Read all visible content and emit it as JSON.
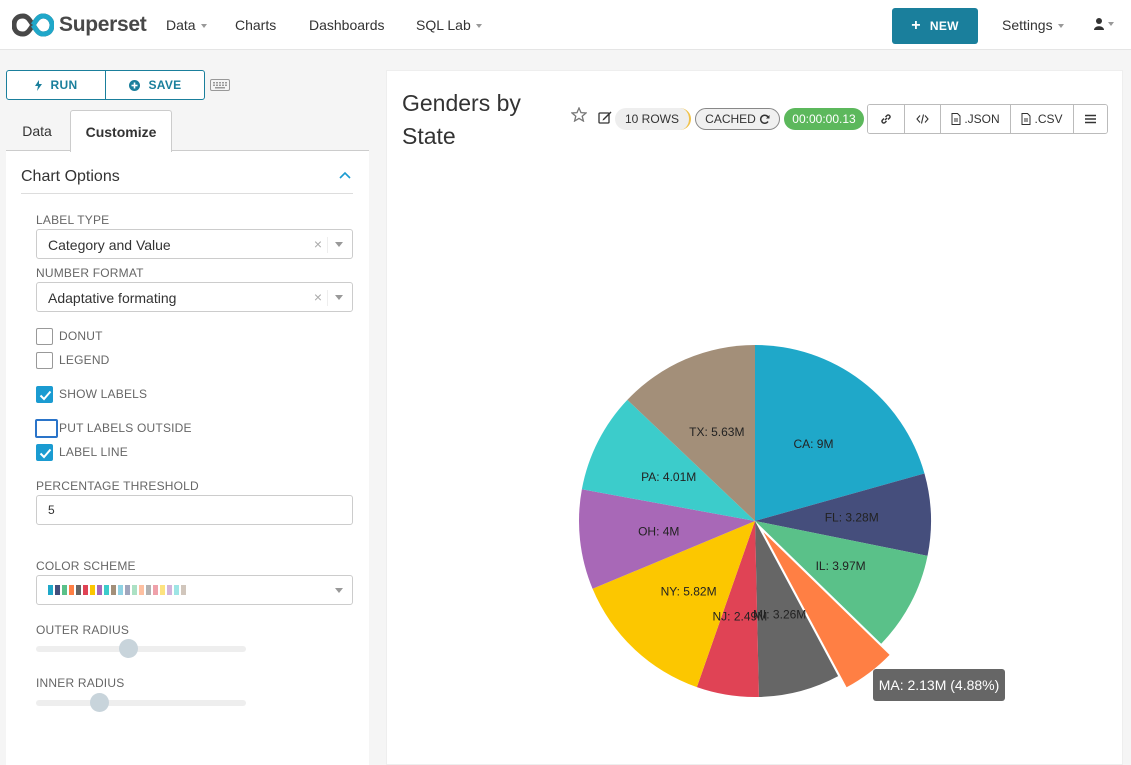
{
  "navbar": {
    "brand": "Superset",
    "items": [
      {
        "label": "Data",
        "dropdown": true
      },
      {
        "label": "Charts",
        "dropdown": false
      },
      {
        "label": "Dashboards",
        "dropdown": false
      },
      {
        "label": "SQL Lab",
        "dropdown": true
      }
    ],
    "new_label": "NEW",
    "settings_label": "Settings",
    "user_icon": "user-icon"
  },
  "toolbar": {
    "run_label": "RUN",
    "save_label": "SAVE"
  },
  "tabs": {
    "data": "Data",
    "customize": "Customize"
  },
  "options": {
    "section_title": "Chart Options",
    "label_type": {
      "label": "LABEL TYPE",
      "value": "Category and Value"
    },
    "number_format": {
      "label": "NUMBER FORMAT",
      "value": "Adaptative formating"
    },
    "checkboxes": [
      {
        "label": "DONUT",
        "checked": false
      },
      {
        "label": "LEGEND",
        "checked": false
      },
      {
        "label": "SHOW LABELS",
        "checked": true
      },
      {
        "label": "PUT LABELS OUTSIDE",
        "checked": false
      },
      {
        "label": "LABEL LINE",
        "checked": true
      }
    ],
    "percentage_threshold": {
      "label": "PERCENTAGE THRESHOLD",
      "value": "5"
    },
    "color_scheme": {
      "label": "COLOR SCHEME",
      "swatches": [
        "#1FA8C9",
        "#454E7C",
        "#5AC189",
        "#FF7F44",
        "#666666",
        "#E04355",
        "#FCC700",
        "#A868B7",
        "#3CCCCB",
        "#A38F79",
        "#8FD3E4",
        "#A1A6BD",
        "#ACE1C4",
        "#FEC0A1",
        "#B2B2B2",
        "#EFA1AA",
        "#FDE380",
        "#D3B3DA",
        "#9EE5E5",
        "#D1C6BC"
      ]
    },
    "outer_radius": {
      "label": "OUTER RADIUS",
      "value": 0.44
    },
    "inner_radius": {
      "label": "INNER RADIUS",
      "value": 0.3
    }
  },
  "chart": {
    "title": "Genders by State",
    "rows_badge": "10 ROWS",
    "cached_badge": "CACHED",
    "timer": "00:00:00.13",
    "json_label": ".JSON",
    "csv_label": ".CSV",
    "tooltip": "MA: 2.13M (4.88%)"
  },
  "chart_data": {
    "type": "pie",
    "categories": [
      "CA",
      "FL",
      "IL",
      "MA",
      "MI",
      "NJ",
      "NY",
      "OH",
      "PA",
      "TX"
    ],
    "values": [
      9.0,
      3.28,
      3.97,
      2.13,
      3.26,
      2.49,
      5.82,
      4.0,
      4.01,
      5.63
    ],
    "labels": [
      "CA: 9M",
      "FL: 3.28M",
      "IL: 3.97M",
      "",
      "MI: 3.26M",
      "NJ: 2.49M",
      "NY: 5.82M",
      "OH: 4M",
      "PA: 4.01M",
      "TX: 5.63M"
    ],
    "colors": [
      "#1FA8C9",
      "#454E7C",
      "#5AC189",
      "#FF7F44",
      "#666666",
      "#E04355",
      "#FCC700",
      "#A868B7",
      "#3CCCCB",
      "#A38F79"
    ],
    "highlighted": "MA"
  }
}
